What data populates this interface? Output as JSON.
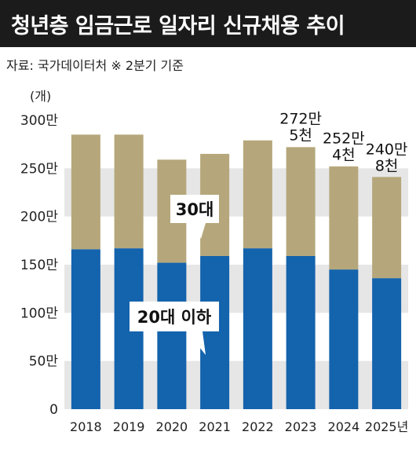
{
  "title": "청년층 임금근로 일자리 신규채용 추이",
  "source": "자료: 국가데이터처   ※ 2분기 기준",
  "chart_data": {
    "type": "bar",
    "stacked": true,
    "unit_label": "(개)",
    "categories": [
      "2018",
      "2019",
      "2020",
      "2021",
      "2022",
      "2023",
      "2024",
      "2025년"
    ],
    "series": [
      {
        "name": "20대 이하",
        "color": "#1463ad",
        "values": [
          166,
          167,
          152,
          159,
          167,
          159,
          145,
          136
        ]
      },
      {
        "name": "30대",
        "color": "#b5a77b",
        "values": [
          119,
          118,
          107,
          106,
          112,
          113,
          107,
          105
        ]
      }
    ],
    "totals": [
      285,
      285,
      259,
      265,
      279,
      272.5,
      252.4,
      240.8
    ],
    "y_ticks": [
      "0",
      "50만",
      "100만",
      "150만",
      "200만",
      "250만",
      "300만"
    ],
    "ylim": [
      0,
      300
    ],
    "annotations": [
      {
        "lines": [
          "272만",
          "5천"
        ]
      },
      {
        "lines": [
          "252만",
          "4천"
        ]
      },
      {
        "lines": [
          "240만",
          "8천"
        ]
      }
    ],
    "callouts": [
      "30대",
      "20대 이하"
    ]
  },
  "colors": {
    "band": "#e6e6e6",
    "title_bg": "#1b1b1b"
  }
}
